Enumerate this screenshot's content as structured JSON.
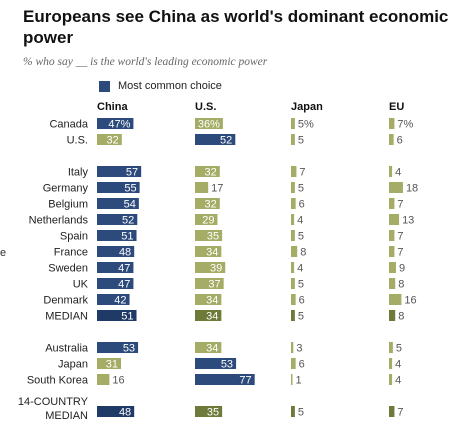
{
  "title": "Europeans see China as world's dominant economic power",
  "subtitle": "% who say __ is the world's leading economic power",
  "legend_label": "Most common choice",
  "stray_text": "e",
  "colors": {
    "dominant": "#2c4a7c",
    "other": "#a5ac65",
    "dominant_median": "#1f3a66",
    "other_median": "#6e7a3a"
  },
  "chart_data": {
    "type": "bar",
    "series_names": [
      "China",
      "U.S.",
      "Japan",
      "EU"
    ],
    "categories": [
      "Canada",
      "U.S.",
      "Italy",
      "Germany",
      "Belgium",
      "Netherlands",
      "Spain",
      "France",
      "Sweden",
      "UK",
      "Denmark",
      "MEDIAN",
      "Australia",
      "Japan",
      "South Korea",
      "14-COUNTRY MEDIAN"
    ],
    "rows": [
      {
        "label": "Canada",
        "values": [
          47,
          36,
          5,
          7
        ],
        "top": "China",
        "pct": true
      },
      {
        "label": "U.S.",
        "values": [
          32,
          52,
          5,
          6
        ],
        "top": "U.S."
      },
      {
        "label": "Italy",
        "values": [
          57,
          32,
          7,
          4
        ],
        "top": "China"
      },
      {
        "label": "Germany",
        "values": [
          55,
          17,
          5,
          18
        ],
        "top": "China"
      },
      {
        "label": "Belgium",
        "values": [
          54,
          32,
          6,
          7
        ],
        "top": "China"
      },
      {
        "label": "Netherlands",
        "values": [
          52,
          29,
          4,
          13
        ],
        "top": "China"
      },
      {
        "label": "Spain",
        "values": [
          51,
          35,
          5,
          7
        ],
        "top": "China"
      },
      {
        "label": "France",
        "values": [
          48,
          34,
          8,
          7
        ],
        "top": "China"
      },
      {
        "label": "Sweden",
        "values": [
          47,
          39,
          4,
          9
        ],
        "top": "China"
      },
      {
        "label": "UK",
        "values": [
          47,
          37,
          5,
          8
        ],
        "top": "China"
      },
      {
        "label": "Denmark",
        "values": [
          42,
          34,
          6,
          16
        ],
        "top": "China"
      },
      {
        "label": "MEDIAN",
        "values": [
          51,
          34,
          5,
          8
        ],
        "top": "China",
        "median": true
      },
      {
        "label": "Australia",
        "values": [
          53,
          34,
          3,
          5
        ],
        "top": "China"
      },
      {
        "label": "Japan",
        "values": [
          31,
          53,
          6,
          4
        ],
        "top": "U.S."
      },
      {
        "label": "South Korea",
        "values": [
          16,
          77,
          1,
          4
        ],
        "top": "U.S."
      },
      {
        "label": "14-COUNTRY MEDIAN",
        "label_lines": [
          "14-COUNTRY",
          "MEDIAN"
        ],
        "values": [
          48,
          35,
          5,
          7
        ],
        "top": "China",
        "median": true
      }
    ]
  }
}
